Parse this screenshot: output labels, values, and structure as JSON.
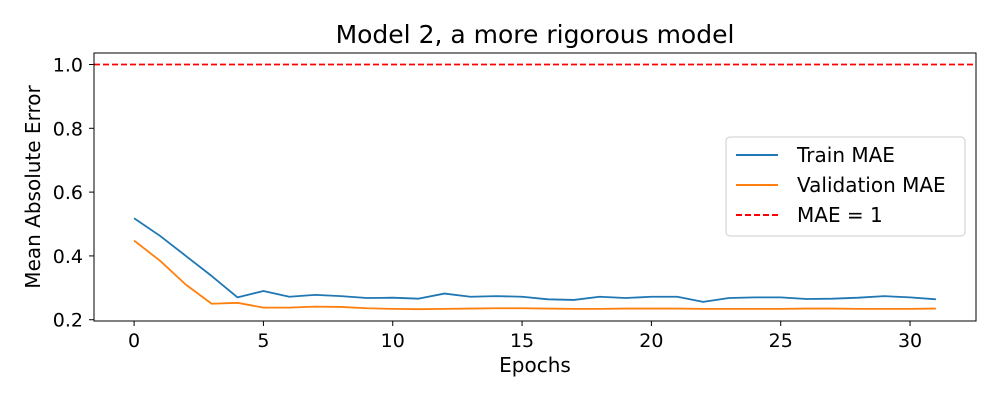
{
  "chart_data": {
    "type": "line",
    "title": "Model 2, a more rigorous model",
    "xlabel": "Epochs",
    "ylabel": "Mean Absolute Error",
    "xlim": [
      -1.55,
      32.55
    ],
    "ylim": [
      0.196,
      1.036
    ],
    "xticks": [
      0,
      5,
      10,
      15,
      20,
      25,
      30
    ],
    "yticks": [
      0.2,
      0.4,
      0.6,
      0.8,
      1.0
    ],
    "xtick_labels": [
      "0",
      "5",
      "10",
      "15",
      "20",
      "25",
      "30"
    ],
    "ytick_labels": [
      "0.2",
      "0.4",
      "0.6",
      "0.8",
      "1.0"
    ],
    "grid": false,
    "legend_position": "center-right",
    "x": [
      0,
      1,
      2,
      3,
      4,
      5,
      6,
      7,
      8,
      9,
      10,
      11,
      12,
      13,
      14,
      15,
      16,
      17,
      18,
      19,
      20,
      21,
      22,
      23,
      24,
      25,
      26,
      27,
      28,
      29,
      30,
      31
    ],
    "series": [
      {
        "name": "Train MAE",
        "color": "#1f77b4",
        "style": "solid",
        "values": [
          0.518,
          0.463,
          0.4,
          0.337,
          0.27,
          0.29,
          0.272,
          0.278,
          0.274,
          0.268,
          0.269,
          0.266,
          0.282,
          0.272,
          0.274,
          0.272,
          0.264,
          0.262,
          0.272,
          0.268,
          0.272,
          0.272,
          0.256,
          0.268,
          0.27,
          0.27,
          0.265,
          0.266,
          0.269,
          0.274,
          0.27,
          0.264
        ]
      },
      {
        "name": "Validation MAE",
        "color": "#ff7f0e",
        "style": "solid",
        "values": [
          0.448,
          0.385,
          0.31,
          0.25,
          0.253,
          0.238,
          0.238,
          0.241,
          0.24,
          0.236,
          0.234,
          0.233,
          0.234,
          0.235,
          0.236,
          0.236,
          0.235,
          0.234,
          0.234,
          0.235,
          0.235,
          0.235,
          0.234,
          0.234,
          0.234,
          0.234,
          0.235,
          0.235,
          0.234,
          0.234,
          0.234,
          0.235
        ]
      }
    ],
    "reference_lines": [
      {
        "name": "MAE = 1",
        "y": 1.0,
        "color": "#ff0000",
        "style": "dashed"
      }
    ]
  }
}
